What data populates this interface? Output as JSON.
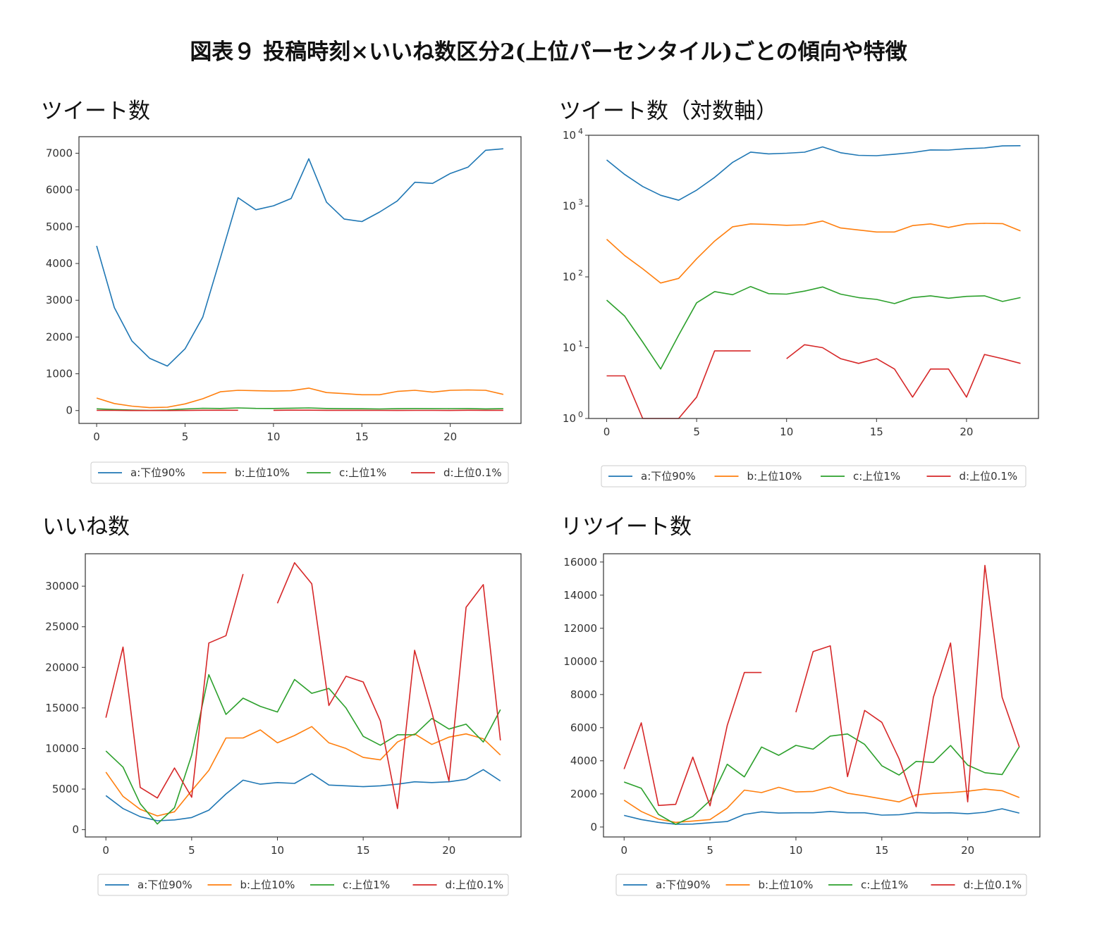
{
  "title": "図表９ 投稿時刻×いいね数区分2(上位パーセンタイル)ごとの傾向や特徴",
  "colors": {
    "a": "#1f77b4",
    "b": "#ff7f0e",
    "c": "#2ca02c",
    "d": "#d62728"
  },
  "chart_data": [
    {
      "id": "tweets",
      "type": "line",
      "title": "ツイート数",
      "xlabel": "",
      "ylabel": "",
      "xlim": [
        -1,
        24
      ],
      "ylim": [
        -350,
        7450
      ],
      "xticks": [
        0,
        5,
        10,
        15,
        20
      ],
      "yticks": [
        0,
        1000,
        2000,
        3000,
        4000,
        5000,
        6000,
        7000
      ],
      "ytick_labels": [
        "0",
        "1000",
        "2000",
        "3000",
        "4000",
        "5000",
        "6000",
        "7000"
      ],
      "grid": false,
      "legend": "bottom",
      "x": [
        0,
        1,
        2,
        3,
        4,
        5,
        6,
        7,
        8,
        9,
        10,
        11,
        12,
        13,
        14,
        15,
        16,
        17,
        18,
        19,
        20,
        21,
        22,
        23
      ],
      "series": [
        {
          "key": "a",
          "name": "a:下位90%",
          "values": [
            4480,
            2800,
            1890,
            1420,
            1210,
            1680,
            2540,
            4150,
            5790,
            5460,
            5570,
            5770,
            6850,
            5670,
            5210,
            5140,
            5400,
            5700,
            6210,
            6180,
            6450,
            6620,
            7080,
            7120
          ]
        },
        {
          "key": "b",
          "name": "b:上位10%",
          "values": [
            340,
            190,
            120,
            80,
            90,
            180,
            320,
            510,
            550,
            540,
            530,
            540,
            610,
            490,
            460,
            430,
            430,
            520,
            550,
            500,
            550,
            560,
            550,
            440
          ]
        },
        {
          "key": "c",
          "name": "c:上位1%",
          "values": [
            47,
            27,
            12,
            5,
            14,
            43,
            62,
            56,
            72,
            58,
            57,
            63,
            72,
            57,
            51,
            48,
            42,
            51,
            54,
            50,
            53,
            54,
            45,
            51
          ]
        },
        {
          "key": "d",
          "name": "d:上位0.1%",
          "values": [
            4,
            4,
            1,
            1,
            1,
            2,
            9,
            9,
            9,
            null,
            7,
            11,
            10,
            7,
            6,
            7,
            5,
            2,
            5,
            5,
            2,
            8,
            7,
            6
          ]
        }
      ]
    },
    {
      "id": "tweets-log",
      "type": "line",
      "title": "ツイート数（対数軸）",
      "xlabel": "",
      "ylabel": "",
      "yscale": "log",
      "xlim": [
        -1,
        24
      ],
      "ylim": [
        1,
        10000
      ],
      "xticks": [
        0,
        5,
        10,
        15,
        20
      ],
      "yticks": [
        1,
        10,
        100,
        1000,
        10000
      ],
      "ytick_labels": [
        "10",
        "10",
        "10",
        "10",
        "10"
      ],
      "ytick_exponents": [
        "0",
        "1",
        "2",
        "3",
        "4"
      ],
      "grid": false,
      "legend": "bottom",
      "x": [
        0,
        1,
        2,
        3,
        4,
        5,
        6,
        7,
        8,
        9,
        10,
        11,
        12,
        13,
        14,
        15,
        16,
        17,
        18,
        19,
        20,
        21,
        22,
        23
      ],
      "series": [
        {
          "key": "a",
          "name": "a:下位90%",
          "values": [
            4480,
            2800,
            1890,
            1420,
            1210,
            1680,
            2540,
            4150,
            5790,
            5460,
            5570,
            5770,
            6850,
            5670,
            5210,
            5140,
            5400,
            5700,
            6210,
            6180,
            6450,
            6620,
            7080,
            7120
          ]
        },
        {
          "key": "b",
          "name": "b:上位10%",
          "values": [
            340,
            200,
            130,
            82,
            95,
            180,
            320,
            510,
            560,
            550,
            535,
            545,
            615,
            490,
            460,
            430,
            430,
            530,
            560,
            500,
            560,
            570,
            565,
            445
          ]
        },
        {
          "key": "c",
          "name": "c:上位1%",
          "values": [
            47,
            28,
            12,
            5,
            15,
            43,
            62,
            56,
            73,
            58,
            57,
            63,
            72,
            57,
            51,
            48,
            42,
            51,
            54,
            50,
            53,
            54,
            45,
            51
          ]
        },
        {
          "key": "d",
          "name": "d:上位0.1%",
          "values": [
            4,
            4,
            1,
            1,
            1,
            2,
            9,
            9,
            9,
            null,
            7,
            11,
            10,
            7,
            6,
            7,
            5,
            2,
            5,
            5,
            2,
            8,
            7,
            6
          ]
        }
      ]
    },
    {
      "id": "likes",
      "type": "line",
      "title": "いいね数",
      "xlabel": "",
      "ylabel": "",
      "xlim": [
        -1.2,
        24.2
      ],
      "ylim": [
        -900,
        34000
      ],
      "xticks": [
        0,
        5,
        10,
        15,
        20
      ],
      "yticks": [
        0,
        5000,
        10000,
        15000,
        20000,
        25000,
        30000
      ],
      "ytick_labels": [
        "0",
        "5000",
        "10000",
        "15000",
        "20000",
        "25000",
        "30000"
      ],
      "grid": false,
      "legend": "bottom",
      "x": [
        0,
        1,
        2,
        3,
        4,
        5,
        6,
        7,
        8,
        9,
        10,
        11,
        12,
        13,
        14,
        15,
        16,
        17,
        18,
        19,
        20,
        21,
        22,
        23
      ],
      "series": [
        {
          "key": "a",
          "name": "a:下位90%",
          "values": [
            4200,
            2600,
            1600,
            1100,
            1200,
            1500,
            2400,
            4400,
            6100,
            5600,
            5800,
            5700,
            6900,
            5500,
            5400,
            5300,
            5400,
            5600,
            5900,
            5800,
            5900,
            6200,
            7400,
            6000
          ]
        },
        {
          "key": "b",
          "name": "b:上位10%",
          "values": [
            7100,
            4100,
            2500,
            1700,
            2200,
            4800,
            7300,
            11300,
            11300,
            12300,
            10700,
            11600,
            12700,
            10700,
            10000,
            8900,
            8600,
            10800,
            11800,
            10500,
            11400,
            11800,
            11200,
            9200
          ]
        },
        {
          "key": "c",
          "name": "c:上位1%",
          "values": [
            9700,
            7700,
            3200,
            700,
            2700,
            9200,
            19100,
            14200,
            16200,
            15200,
            14500,
            18500,
            16800,
            17400,
            15000,
            11500,
            10400,
            11700,
            11700,
            13700,
            12400,
            13000,
            10800,
            14800
          ]
        },
        {
          "key": "d",
          "name": "d:上位0.1%",
          "values": [
            13800,
            22500,
            5200,
            3900,
            7600,
            4000,
            23000,
            23900,
            31500,
            null,
            27900,
            32900,
            30300,
            15300,
            18900,
            18200,
            13400,
            2600,
            22100,
            14500,
            6000,
            27400,
            30200,
            11000
          ]
        }
      ]
    },
    {
      "id": "retweets",
      "type": "line",
      "title": "リツイート数",
      "xlabel": "",
      "ylabel": "",
      "xlim": [
        -1.2,
        24.2
      ],
      "ylim": [
        -600,
        16500
      ],
      "xticks": [
        0,
        5,
        10,
        15,
        20
      ],
      "yticks": [
        0,
        2000,
        4000,
        6000,
        8000,
        10000,
        12000,
        14000,
        16000
      ],
      "ytick_labels": [
        "0",
        "2000",
        "4000",
        "6000",
        "8000",
        "10000",
        "12000",
        "14000",
        "16000"
      ],
      "grid": false,
      "legend": "bottom",
      "x": [
        0,
        1,
        2,
        3,
        4,
        5,
        6,
        7,
        8,
        9,
        10,
        11,
        12,
        13,
        14,
        15,
        16,
        17,
        18,
        19,
        20,
        21,
        22,
        23
      ],
      "series": [
        {
          "key": "a",
          "name": "a:下位90%",
          "values": [
            700,
            450,
            280,
            170,
            180,
            260,
            330,
            760,
            920,
            840,
            860,
            860,
            940,
            860,
            860,
            720,
            740,
            870,
            840,
            860,
            800,
            890,
            1100,
            840
          ]
        },
        {
          "key": "b",
          "name": "b:上位10%",
          "values": [
            1620,
            940,
            480,
            280,
            360,
            450,
            1140,
            2230,
            2080,
            2400,
            2120,
            2150,
            2410,
            2040,
            1880,
            1700,
            1520,
            1940,
            2030,
            2080,
            2160,
            2290,
            2190,
            1780
          ]
        },
        {
          "key": "c",
          "name": "c:上位1%",
          "values": [
            2720,
            2340,
            760,
            160,
            640,
            1600,
            3790,
            3030,
            4830,
            4330,
            4930,
            4700,
            5490,
            5620,
            4990,
            3700,
            3140,
            3960,
            3900,
            4920,
            3740,
            3280,
            3170,
            4850
          ]
        },
        {
          "key": "d",
          "name": "d:上位0.1%",
          "values": [
            3500,
            6290,
            1300,
            1370,
            4220,
            1280,
            6130,
            9330,
            9330,
            null,
            6930,
            10590,
            10940,
            3040,
            7040,
            6320,
            4130,
            1220,
            7830,
            11110,
            1520,
            15800,
            7840,
            4840
          ]
        }
      ]
    }
  ]
}
